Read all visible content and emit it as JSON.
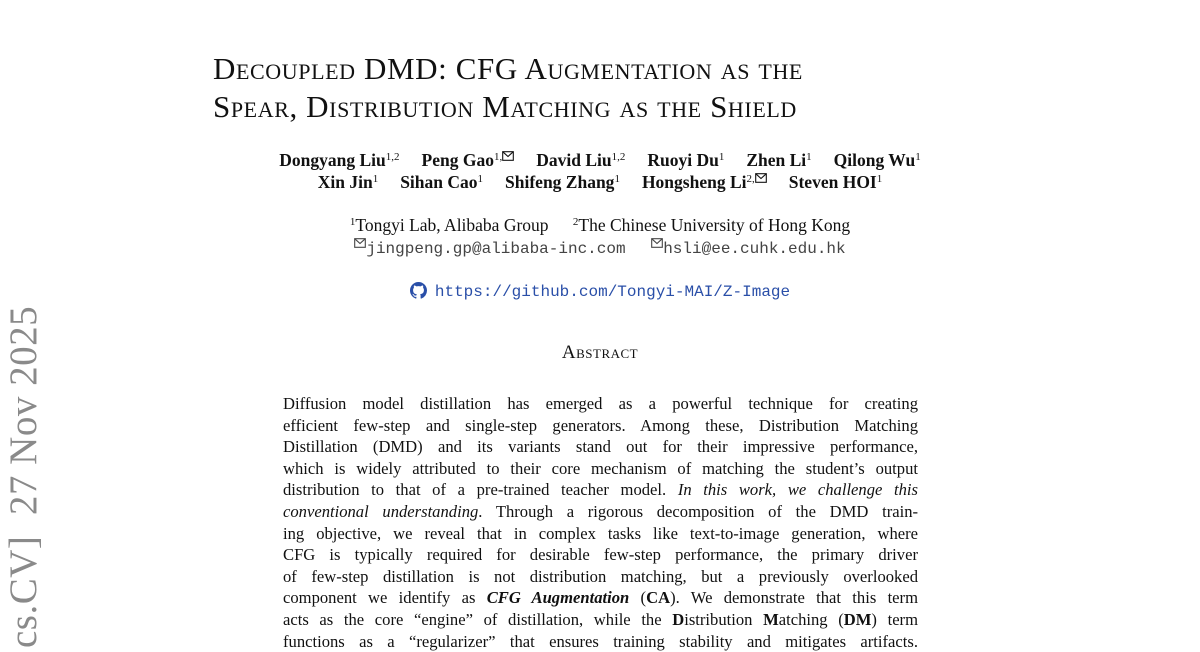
{
  "title": {
    "line1": "Decoupled DMD: CFG Augmentation as the",
    "line2": "Spear, Distribution Matching as the Shield"
  },
  "authors": [
    {
      "name": "Dongyang Liu",
      "sup": "1,2",
      "corresponding": false
    },
    {
      "name": "Peng Gao",
      "sup": "1,",
      "corresponding": true
    },
    {
      "name": "David Liu",
      "sup": "1,2",
      "corresponding": false
    },
    {
      "name": "Ruoyi Du",
      "sup": "1",
      "corresponding": false
    },
    {
      "name": "Zhen Li",
      "sup": "1",
      "corresponding": false
    },
    {
      "name": "Qilong Wu",
      "sup": "1",
      "corresponding": false
    },
    {
      "name": "Xin Jin",
      "sup": "1",
      "corresponding": false
    },
    {
      "name": "Sihan Cao",
      "sup": "1",
      "corresponding": false
    },
    {
      "name": "Shifeng Zhang",
      "sup": "1",
      "corresponding": false
    },
    {
      "name": "Hongsheng Li",
      "sup": "2,",
      "corresponding": true
    },
    {
      "name": "Steven HOI",
      "sup": "1",
      "corresponding": false
    }
  ],
  "affiliations": [
    {
      "sup": "1",
      "name": "Tongyi Lab, Alibaba Group"
    },
    {
      "sup": "2",
      "name": "The Chinese University of Hong Kong"
    }
  ],
  "emails": [
    "jingpeng.gp@alibaba-inc.com",
    "hsli@ee.cuhk.edu.hk"
  ],
  "repo_url": "https://github.com/Tongyi-MAI/Z-Image",
  "abstract_heading": "Abstract",
  "abstract_lines": [
    [
      {
        "t": "Diffusion model distillation has emerged as a powerful technique for creating"
      }
    ],
    [
      {
        "t": "efficient few-step and single-step generators. Among these, Distribution Matching"
      }
    ],
    [
      {
        "t": "Distillation (DMD) and its variants stand out for their impressive performance,"
      }
    ],
    [
      {
        "t": "which is widely attributed to their core mechanism of matching the student’s output"
      }
    ],
    [
      {
        "t": "distribution to that of a pre-trained teacher model. "
      },
      {
        "t": "In this work, we challenge this",
        "s": "i"
      }
    ],
    [
      {
        "t": "conventional understanding",
        "s": "i"
      },
      {
        "t": ". Through a rigorous decomposition of the DMD train-"
      }
    ],
    [
      {
        "t": "ing objective, we reveal that in complex tasks like text-to-image generation, where"
      }
    ],
    [
      {
        "t": "CFG is typically required for desirable few-step performance, the primary driver"
      }
    ],
    [
      {
        "t": "of few-step distillation is not distribution matching, but a previously overlooked"
      }
    ],
    [
      {
        "t": "component we identify as "
      },
      {
        "t": "CFG Augmentation",
        "s": "bi"
      },
      {
        "t": " ("
      },
      {
        "t": "CA",
        "s": "b"
      },
      {
        "t": "). We demonstrate that this term"
      }
    ],
    [
      {
        "t": "acts as the core “engine” of distillation, while the "
      },
      {
        "t": "D",
        "s": "b"
      },
      {
        "t": "istribution "
      },
      {
        "t": "M",
        "s": "b"
      },
      {
        "t": "atching ("
      },
      {
        "t": "DM",
        "s": "b"
      },
      {
        "t": ") term"
      }
    ],
    [
      {
        "t": "functions as a “regularizer” that ensures training stability and mitigates artifacts."
      }
    ]
  ],
  "arxiv_stamp": "cs.CV]  27 Nov 2025",
  "colors": {
    "link": "#2a4fa8",
    "stamp": "#8a8a8a"
  }
}
